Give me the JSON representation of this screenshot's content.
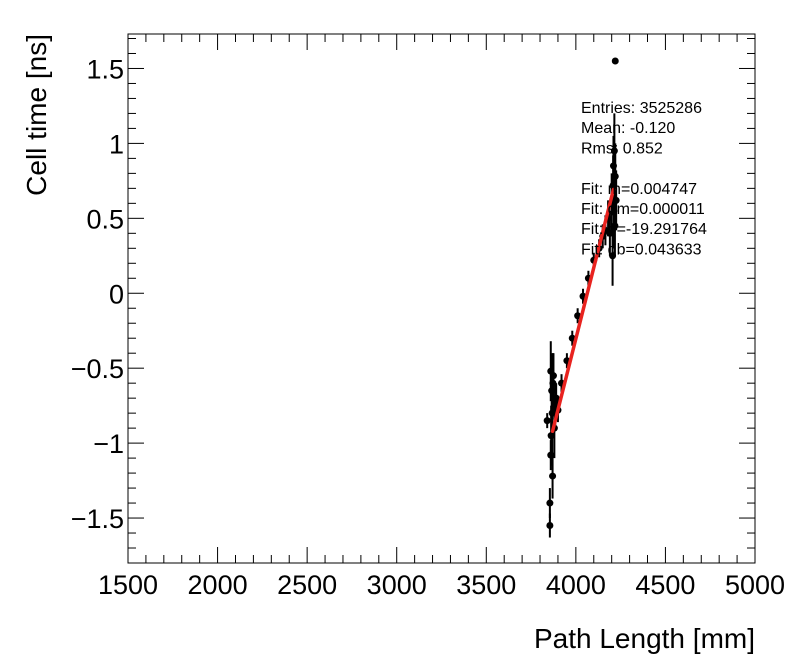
{
  "chart_data": {
    "type": "scatter",
    "title": "",
    "xlabel": "Path Length [mm]",
    "ylabel": "Cell time [ns]",
    "xlim": [
      1500,
      5000
    ],
    "ylim": [
      -1.8,
      1.73
    ],
    "x_ticks": [
      1500,
      2000,
      2500,
      3000,
      3500,
      4000,
      4500,
      5000
    ],
    "y_ticks": [
      -1.5,
      -1,
      -0.5,
      0,
      0.5,
      1,
      1.5
    ],
    "y_tick_labels": [
      "−1.5",
      "−1",
      "−0.5",
      "0",
      "0.5",
      "1",
      "1.5"
    ],
    "series": [
      {
        "name": "data",
        "points": [
          {
            "x": 3840,
            "y": -0.85,
            "err": 0.05
          },
          {
            "x": 3855,
            "y": -1.55,
            "err": 0.08
          },
          {
            "x": 3855,
            "y": -1.4,
            "err": 0.1
          },
          {
            "x": 3860,
            "y": -1.08,
            "err": 0.1
          },
          {
            "x": 3860,
            "y": -0.52,
            "err": 0.2
          },
          {
            "x": 3862,
            "y": -0.95,
            "err": 0.2
          },
          {
            "x": 3865,
            "y": -0.65,
            "err": 0.25
          },
          {
            "x": 3868,
            "y": -0.8,
            "err": 0.3
          },
          {
            "x": 3870,
            "y": -1.22,
            "err": 0.15
          },
          {
            "x": 3872,
            "y": -0.6,
            "err": 0.2
          },
          {
            "x": 3875,
            "y": -0.55,
            "err": 0.15
          },
          {
            "x": 3880,
            "y": -0.9,
            "err": 0.2
          },
          {
            "x": 3885,
            "y": -0.75,
            "err": 0.15
          },
          {
            "x": 3890,
            "y": -0.7,
            "err": 0.1
          },
          {
            "x": 3900,
            "y": -0.78,
            "err": 0.08
          },
          {
            "x": 3920,
            "y": -0.6,
            "err": 0.06
          },
          {
            "x": 3950,
            "y": -0.45,
            "err": 0.05
          },
          {
            "x": 3980,
            "y": -0.3,
            "err": 0.05
          },
          {
            "x": 4010,
            "y": -0.15,
            "err": 0.05
          },
          {
            "x": 4040,
            "y": -0.02,
            "err": 0.05
          },
          {
            "x": 4070,
            "y": 0.1,
            "err": 0.05
          },
          {
            "x": 4100,
            "y": 0.22,
            "err": 0.05
          },
          {
            "x": 4130,
            "y": 0.3,
            "err": 0.06
          },
          {
            "x": 4150,
            "y": 0.38,
            "err": 0.08
          },
          {
            "x": 4165,
            "y": 0.42,
            "err": 0.1
          },
          {
            "x": 4180,
            "y": 0.5,
            "err": 0.12
          },
          {
            "x": 4190,
            "y": 0.4,
            "err": 0.15
          },
          {
            "x": 4200,
            "y": 0.6,
            "err": 0.2
          },
          {
            "x": 4205,
            "y": 0.25,
            "err": 0.2
          },
          {
            "x": 4208,
            "y": 0.72,
            "err": 0.2
          },
          {
            "x": 4210,
            "y": 0.85,
            "err": 0.2
          },
          {
            "x": 4212,
            "y": 0.55,
            "err": 0.25
          },
          {
            "x": 4215,
            "y": 0.95,
            "err": 0.25
          },
          {
            "x": 4218,
            "y": 0.45,
            "err": 0.2
          },
          {
            "x": 4220,
            "y": 0.78,
            "err": 0.22
          },
          {
            "x": 4225,
            "y": 0.62,
            "err": 0.2
          },
          {
            "x": 4220,
            "y": 1.55,
            "err": 0.0
          }
        ]
      }
    ],
    "fit_line": {
      "slope": 0.004747,
      "intercept": -19.291764,
      "x_range": [
        3870,
        4210
      ],
      "color": "#e8231f"
    },
    "stats": [
      "Entries: 3525286",
      "Mean: -0.120",
      "Rms: 0.852",
      "",
      "Fit: m=0.004747",
      "Fit: dm=0.000011",
      "Fit: b=-19.291764",
      "Fit: db=0.043633"
    ],
    "stats_placement": "top-right",
    "grid": false
  }
}
